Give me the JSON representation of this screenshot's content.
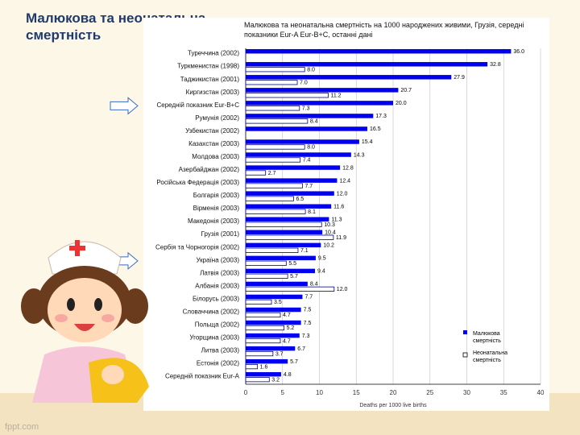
{
  "slide": {
    "title": "Малюкова та неонатальна смертність",
    "watermark": "fppt.com"
  },
  "chart_data": {
    "type": "bar",
    "orientation": "horizontal",
    "title": "Малюкова та неонатальна смертність на 1000 народжених живими, Грузія, середні показники Eur-A Eur-B+C, останні дані",
    "xlabel": "Deaths per 1000 live births",
    "xlim": [
      0,
      40
    ],
    "xticks": [
      0,
      5,
      10,
      15,
      20,
      25,
      30,
      35,
      40
    ],
    "grid": true,
    "legend_position": "bottom-right",
    "colors": {
      "infant": "#0000ee",
      "neonatal": "#ffffff",
      "outline": "#000080"
    },
    "categories": [
      "Туреччина (2002)",
      "Туркменистан (1998)",
      "Таджикистан (2001)",
      "Киргизстан (2003)",
      "Середній показник Eur-B+C",
      "Румунія (2002)",
      "Узбекистан (2002)",
      "Казахстан (2003)",
      "Молдова (2003)",
      "Азербайджан (2002)",
      "Російська Федерація (2003)",
      "Болгарія (2003)",
      "Вірменія (2003)",
      "Македонія (2003)",
      "Грузія (2001)",
      "Сербія та Чорногорія (2002)",
      "Україна (2003)",
      "Латвія (2003)",
      "Албанія (2003)",
      "Білорусь (2003)",
      "Словаччина (2002)",
      "Польща (2002)",
      "Угорщина (2003)",
      "Литва (2003)",
      "Естонія (2002)",
      "Середній показник Eur-A"
    ],
    "series": [
      {
        "name": "Малюкова смертність",
        "values": [
          36.0,
          32.8,
          27.9,
          20.7,
          20.0,
          17.3,
          16.5,
          15.4,
          14.3,
          12.8,
          12.4,
          12.0,
          11.6,
          11.3,
          10.4,
          10.2,
          9.5,
          9.4,
          8.4,
          7.7,
          7.5,
          7.5,
          7.3,
          6.7,
          5.7,
          4.8
        ],
        "labels": [
          "36.0",
          "32.8",
          "27.9",
          "20.7",
          "20.0",
          "17.3",
          "16.5",
          "15.4",
          "14.3",
          "12.8",
          "12.4",
          "12.0",
          "11.6",
          "11.3",
          "10.4",
          "10.2",
          "9.5",
          "9.4",
          "8.4",
          "7.7",
          "7.5",
          "7.5",
          "7.3",
          "6.7",
          "5.7",
          "4.8"
        ]
      },
      {
        "name": "Неонатальна смертність",
        "values": [
          null,
          8.0,
          7.0,
          11.2,
          7.3,
          8.4,
          null,
          8.0,
          7.4,
          2.7,
          7.7,
          6.5,
          8.1,
          10.3,
          11.9,
          7.1,
          5.5,
          5.7,
          12.0,
          3.5,
          4.7,
          5.2,
          4.7,
          3.7,
          1.6,
          3.2
        ],
        "labels": [
          "",
          "8.0",
          "7.0",
          "11.2",
          "7.3",
          "8.4",
          "",
          "8.0",
          "7.4",
          "2.7",
          "7.7",
          "6.5",
          "8.1",
          "10.3",
          "11.9",
          "7.1",
          "5.5",
          "5.7",
          "12.0",
          "3.5",
          "4.7",
          "5.2",
          "4.7",
          "3.7",
          "1.6",
          "3.2"
        ]
      }
    ]
  }
}
